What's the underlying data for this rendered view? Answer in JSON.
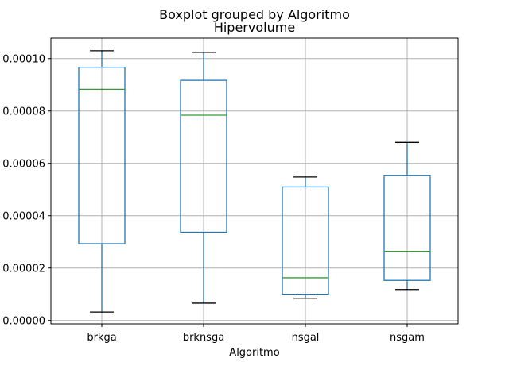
{
  "chart_data": {
    "type": "boxplot",
    "suptitle": "Boxplot grouped by Algoritmo",
    "title": "Hipervolume",
    "xlabel": "Algoritmo",
    "ylabel": "",
    "categories": [
      "brkga",
      "brknsga",
      "nsgal",
      "nsgam"
    ],
    "ylim": [
      -1.3e-06,
      0.0001078
    ],
    "yticks": [
      0.0,
      2e-05,
      4e-05,
      6e-05,
      8e-05,
      0.0001
    ],
    "ytick_labels": [
      "0.00000",
      "0.00002",
      "0.00004",
      "0.00006",
      "0.00008",
      "0.00010"
    ],
    "grid": true,
    "boxes": [
      {
        "category": "brkga",
        "whisker_low": 3.2e-06,
        "q1": 2.93e-05,
        "median": 8.83e-05,
        "q3": 9.67e-05,
        "whisker_high": 0.000103
      },
      {
        "category": "brknsga",
        "whisker_low": 6.6e-06,
        "q1": 3.37e-05,
        "median": 7.84e-05,
        "q3": 9.17e-05,
        "whisker_high": 0.0001024
      },
      {
        "category": "nsgal",
        "whisker_low": 8.5e-06,
        "q1": 9.8e-06,
        "median": 1.63e-05,
        "q3": 5.1e-05,
        "whisker_high": 5.48e-05
      },
      {
        "category": "nsgam",
        "whisker_low": 1.18e-05,
        "q1": 1.53e-05,
        "median": 2.64e-05,
        "q3": 5.53e-05,
        "whisker_high": 6.8e-05
      }
    ],
    "colors": {
      "box": "#1f77b4",
      "median": "#2ca02c",
      "cap": "#000000",
      "grid": "#b0b0b0",
      "axes": "#000000"
    }
  }
}
